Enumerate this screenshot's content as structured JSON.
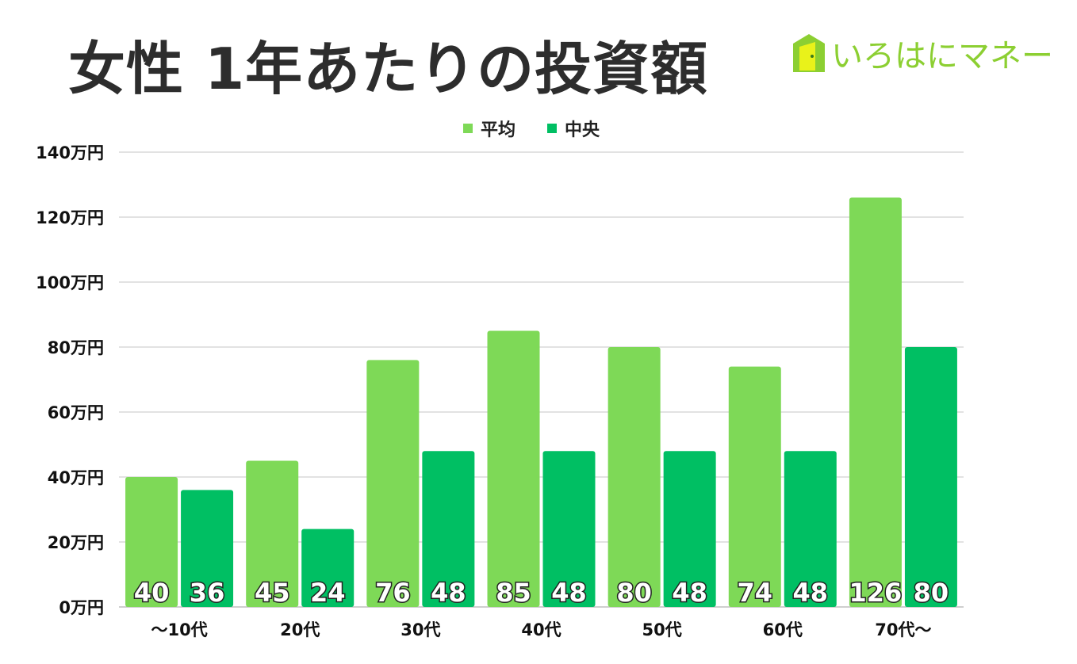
{
  "title": "女性 1年あたりの投資額",
  "logo": {
    "text": "いろはにマネー",
    "icon": "door-house-icon",
    "color": "#8ccf32"
  },
  "legend": [
    {
      "name": "平均",
      "color": "#7ed957"
    },
    {
      "name": "中央",
      "color": "#00bf63"
    }
  ],
  "chart_data": {
    "type": "bar",
    "title": "女性 1年あたりの投資額",
    "categories": [
      "〜10代",
      "20代",
      "30代",
      "40代",
      "50代",
      "60代",
      "70代〜"
    ],
    "series": [
      {
        "name": "平均",
        "color": "#7ed957",
        "values": [
          40,
          45,
          76,
          85,
          80,
          74,
          126
        ]
      },
      {
        "name": "中央",
        "color": "#00bf63",
        "values": [
          36,
          24,
          48,
          48,
          48,
          48,
          80
        ]
      }
    ],
    "y_ticks": [
      "0万円",
      "20万円",
      "40万円",
      "60万円",
      "80万円",
      "100万円",
      "120万円",
      "140万円"
    ],
    "ylim": [
      0,
      140
    ],
    "grid": true,
    "legend_position": "top"
  }
}
